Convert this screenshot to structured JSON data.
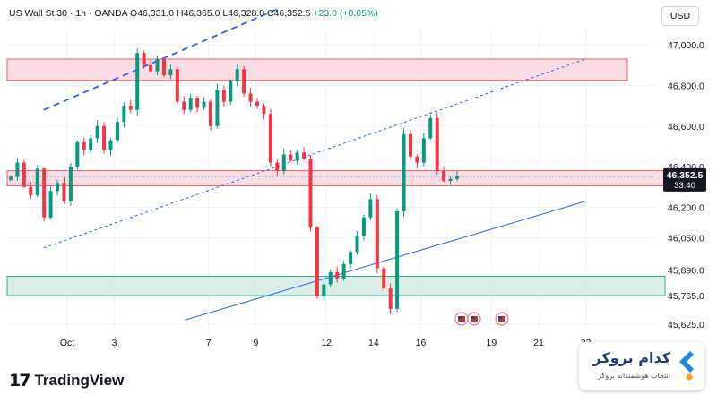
{
  "header": {
    "symbol": "US Wall St 30",
    "interval": "1h",
    "source": "OANDA",
    "ohlc": "O46,331.0 H46,365.0 L46,328.0 C46,352.5",
    "change": "+23.0 (+0.05%)"
  },
  "currency_button": "USD",
  "colors": {
    "up": "#089981",
    "down": "#f23645",
    "zone_red_fill": "#f9d6df",
    "zone_green_fill": "#d3ebe3",
    "trend_line": "#2962ff",
    "accent_blue": "#2962ff"
  },
  "price_scale_ticks": [
    "47,000.0",
    "46,800.0",
    "46,600.0",
    "46,400.0",
    "46,200.0",
    "46,050.0",
    "45,890.0",
    "45,765.0",
    "45,625.0"
  ],
  "time_axis_ticks": [
    "Oct",
    "3",
    "7",
    "9",
    "12",
    "14",
    "16",
    "19",
    "21",
    "23"
  ],
  "last_price": {
    "price": "46,352.5",
    "countdown": "33:40"
  },
  "logo": {
    "name": "TradingView"
  },
  "watermark": {
    "name": "کدام بروکر",
    "tagline": "انتخاب هوشمندانه بروکر"
  },
  "chart_data": {
    "type": "candlestick",
    "title": "US Wall St 30 · 1h · OANDA",
    "ylim": [
      45580,
      47080
    ],
    "grid": true,
    "zones": [
      {
        "kind": "resistance",
        "color": "red",
        "from": 46825,
        "to": 46930
      },
      {
        "kind": "pivot",
        "color": "red",
        "from": 46305,
        "to": 46380
      },
      {
        "kind": "support",
        "color": "green",
        "from": 45765,
        "to": 45860
      }
    ],
    "trend_lines": [
      {
        "style": "dashed",
        "from": [
          "Sep 30",
          46680
        ],
        "to": [
          "Oct 10",
          47180
        ]
      },
      {
        "style": "dotted",
        "from": [
          "Sep 30",
          46000
        ],
        "to": [
          "Oct 23",
          46930
        ]
      },
      {
        "style": "solid",
        "from": [
          "Oct 6",
          45645
        ],
        "to": [
          "Oct 23",
          46230
        ]
      }
    ],
    "close_path": [
      46350,
      46420,
      46300,
      46260,
      46390,
      46150,
      46280,
      46320,
      46230,
      46400,
      46520,
      46480,
      46540,
      46600,
      46480,
      46530,
      46620,
      46700,
      46680,
      46960,
      46900,
      46870,
      46930,
      46850,
      46880,
      46720,
      46680,
      46740,
      46690,
      46720,
      46600,
      46780,
      46720,
      46820,
      46880,
      46760,
      46720,
      46700,
      46660,
      46420,
      46380,
      46460,
      46430,
      46470,
      46440,
      46100,
      45760,
      45820,
      45880,
      45850,
      45920,
      45980,
      46060,
      46150,
      46240,
      45900,
      45800,
      45700,
      46180,
      46560,
      46450,
      46420,
      46540,
      46640,
      46380,
      46330,
      46340,
      46352.5
    ]
  }
}
